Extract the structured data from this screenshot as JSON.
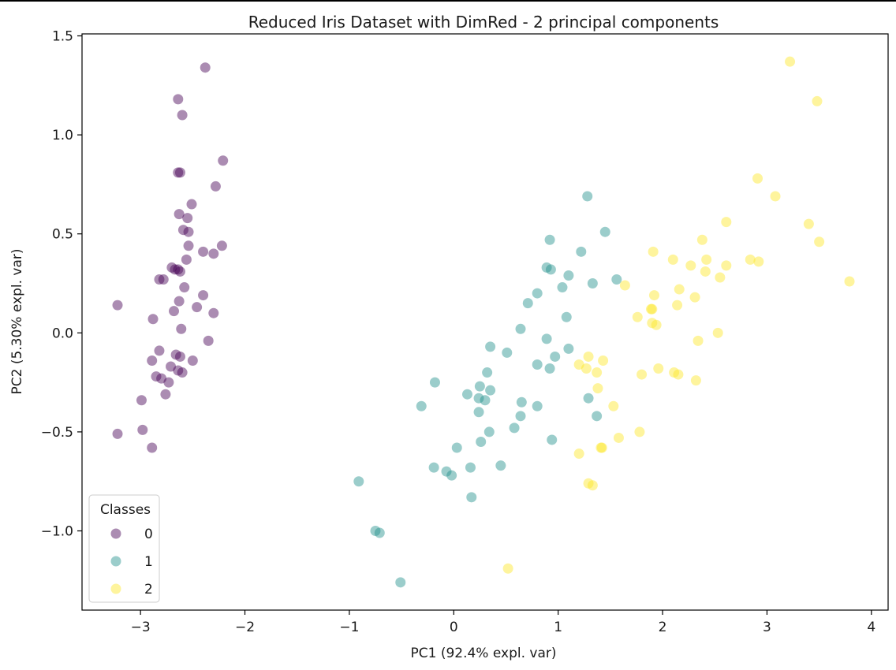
{
  "chart_data": {
    "type": "scatter",
    "title": "Reduced Iris Dataset with DimRed - 2 principal components",
    "xlabel": "PC1 (92.4% expl. var)",
    "ylabel": "PC2 (5.30% expl. var)",
    "xlim": [
      -3.56,
      4.16
    ],
    "ylim": [
      -1.4,
      1.51
    ],
    "xticks": [
      -3,
      -2,
      -1,
      0,
      1,
      2,
      3,
      4
    ],
    "xtick_labels": [
      "−3",
      "−2",
      "−1",
      "0",
      "1",
      "2",
      "3",
      "4"
    ],
    "yticks": [
      -1.0,
      -0.5,
      0.0,
      0.5,
      1.0,
      1.5
    ],
    "ytick_labels": [
      "−1.0",
      "−0.5",
      "0.0",
      "0.5",
      "1.0",
      "1.5"
    ],
    "grid": false,
    "legend": {
      "title": "Classes",
      "placement": "lower-left"
    },
    "series": [
      {
        "name": "0",
        "color": "#440154",
        "points": [
          [
            -2.38,
            1.34
          ],
          [
            -2.64,
            1.18
          ],
          [
            -2.6,
            1.1
          ],
          [
            -2.21,
            0.87
          ],
          [
            -2.64,
            0.81
          ],
          [
            -2.62,
            0.81
          ],
          [
            -2.28,
            0.74
          ],
          [
            -2.51,
            0.65
          ],
          [
            -2.63,
            0.6
          ],
          [
            -2.55,
            0.58
          ],
          [
            -2.59,
            0.52
          ],
          [
            -2.54,
            0.51
          ],
          [
            -2.54,
            0.44
          ],
          [
            -2.22,
            0.44
          ],
          [
            -2.4,
            0.41
          ],
          [
            -2.3,
            0.4
          ],
          [
            -2.56,
            0.37
          ],
          [
            -2.7,
            0.33
          ],
          [
            -2.67,
            0.32
          ],
          [
            -2.64,
            0.32
          ],
          [
            -2.62,
            0.31
          ],
          [
            -2.82,
            0.27
          ],
          [
            -2.78,
            0.27
          ],
          [
            -2.58,
            0.23
          ],
          [
            -2.4,
            0.19
          ],
          [
            -2.63,
            0.16
          ],
          [
            -3.22,
            0.14
          ],
          [
            -2.46,
            0.13
          ],
          [
            -2.68,
            0.11
          ],
          [
            -2.3,
            0.1
          ],
          [
            -2.88,
            0.07
          ],
          [
            -2.61,
            0.02
          ],
          [
            -2.35,
            -0.04
          ],
          [
            -2.82,
            -0.09
          ],
          [
            -2.66,
            -0.11
          ],
          [
            -2.62,
            -0.12
          ],
          [
            -2.89,
            -0.14
          ],
          [
            -2.5,
            -0.14
          ],
          [
            -2.71,
            -0.17
          ],
          [
            -2.64,
            -0.19
          ],
          [
            -2.6,
            -0.2
          ],
          [
            -2.85,
            -0.22
          ],
          [
            -2.8,
            -0.23
          ],
          [
            -2.73,
            -0.25
          ],
          [
            -2.76,
            -0.31
          ],
          [
            -2.99,
            -0.34
          ],
          [
            -3.22,
            -0.51
          ],
          [
            -2.98,
            -0.49
          ],
          [
            -2.89,
            -0.58
          ]
        ]
      },
      {
        "name": "1",
        "color": "#21918c",
        "points": [
          [
            1.28,
            0.69
          ],
          [
            1.45,
            0.51
          ],
          [
            0.92,
            0.47
          ],
          [
            1.22,
            0.41
          ],
          [
            0.89,
            0.33
          ],
          [
            0.93,
            0.32
          ],
          [
            1.1,
            0.29
          ],
          [
            1.56,
            0.27
          ],
          [
            1.33,
            0.25
          ],
          [
            1.04,
            0.23
          ],
          [
            0.8,
            0.2
          ],
          [
            0.71,
            0.15
          ],
          [
            1.08,
            0.08
          ],
          [
            0.64,
            0.02
          ],
          [
            0.89,
            -0.03
          ],
          [
            0.35,
            -0.07
          ],
          [
            0.51,
            -0.1
          ],
          [
            0.97,
            -0.12
          ],
          [
            1.1,
            -0.08
          ],
          [
            0.8,
            -0.16
          ],
          [
            0.92,
            -0.18
          ],
          [
            0.32,
            -0.2
          ],
          [
            0.25,
            -0.27
          ],
          [
            0.35,
            -0.29
          ],
          [
            0.13,
            -0.31
          ],
          [
            0.24,
            -0.33
          ],
          [
            0.3,
            -0.34
          ],
          [
            -0.18,
            -0.25
          ],
          [
            -0.31,
            -0.37
          ],
          [
            0.65,
            -0.35
          ],
          [
            0.8,
            -0.37
          ],
          [
            0.24,
            -0.4
          ],
          [
            1.29,
            -0.33
          ],
          [
            1.37,
            -0.42
          ],
          [
            0.64,
            -0.42
          ],
          [
            0.58,
            -0.48
          ],
          [
            0.34,
            -0.5
          ],
          [
            0.26,
            -0.55
          ],
          [
            0.94,
            -0.54
          ],
          [
            0.03,
            -0.58
          ],
          [
            -0.19,
            -0.68
          ],
          [
            -0.07,
            -0.7
          ],
          [
            -0.02,
            -0.72
          ],
          [
            0.16,
            -0.68
          ],
          [
            0.45,
            -0.67
          ],
          [
            0.17,
            -0.83
          ],
          [
            -0.91,
            -0.75
          ],
          [
            -0.75,
            -1.0
          ],
          [
            -0.71,
            -1.01
          ],
          [
            -0.51,
            -1.26
          ]
        ]
      },
      {
        "name": "2",
        "color": "#fde725",
        "points": [
          [
            3.22,
            1.37
          ],
          [
            3.48,
            1.17
          ],
          [
            2.91,
            0.78
          ],
          [
            3.08,
            0.69
          ],
          [
            2.61,
            0.56
          ],
          [
            3.4,
            0.55
          ],
          [
            3.5,
            0.46
          ],
          [
            2.38,
            0.47
          ],
          [
            1.91,
            0.41
          ],
          [
            2.1,
            0.37
          ],
          [
            2.42,
            0.37
          ],
          [
            2.84,
            0.37
          ],
          [
            2.92,
            0.36
          ],
          [
            2.61,
            0.34
          ],
          [
            2.27,
            0.34
          ],
          [
            2.41,
            0.31
          ],
          [
            2.55,
            0.28
          ],
          [
            3.79,
            0.26
          ],
          [
            1.64,
            0.24
          ],
          [
            2.16,
            0.22
          ],
          [
            1.92,
            0.19
          ],
          [
            2.31,
            0.18
          ],
          [
            2.14,
            0.14
          ],
          [
            1.9,
            0.12
          ],
          [
            1.89,
            0.12
          ],
          [
            1.76,
            0.08
          ],
          [
            1.9,
            0.05
          ],
          [
            1.94,
            0.04
          ],
          [
            2.53,
            -0.0
          ],
          [
            2.34,
            -0.04
          ],
          [
            1.43,
            -0.14
          ],
          [
            1.29,
            -0.12
          ],
          [
            1.2,
            -0.16
          ],
          [
            1.27,
            -0.18
          ],
          [
            1.37,
            -0.2
          ],
          [
            1.96,
            -0.18
          ],
          [
            1.8,
            -0.21
          ],
          [
            2.11,
            -0.2
          ],
          [
            2.15,
            -0.21
          ],
          [
            2.32,
            -0.24
          ],
          [
            1.38,
            -0.28
          ],
          [
            1.53,
            -0.37
          ],
          [
            1.78,
            -0.5
          ],
          [
            1.58,
            -0.53
          ],
          [
            1.42,
            -0.58
          ],
          [
            1.41,
            -0.58
          ],
          [
            1.2,
            -0.61
          ],
          [
            1.29,
            -0.76
          ],
          [
            1.33,
            -0.77
          ],
          [
            0.52,
            -1.19
          ]
        ]
      }
    ]
  }
}
